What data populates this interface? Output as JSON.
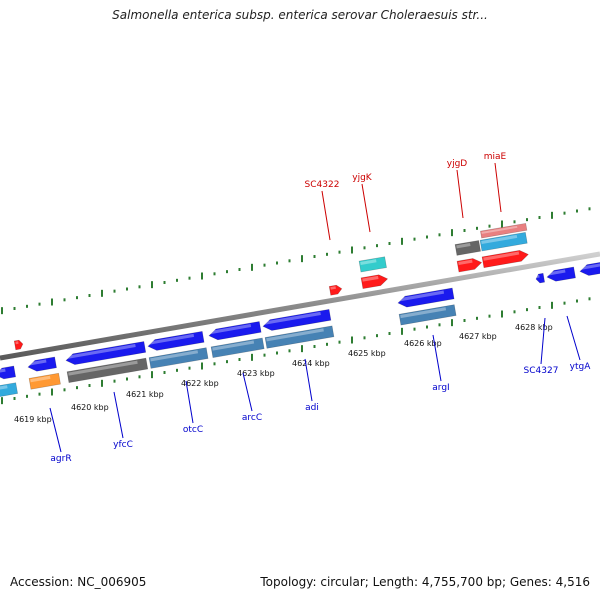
{
  "title": "Salmonella enterica subsp. enterica serovar Choleraesuis str...",
  "footer": {
    "accession": "Accession: NC_006905",
    "summary": "Topology: circular; Length: 4,755,700 bp; Genes: 4,516"
  },
  "colors": {
    "forward_label": "#cc0000",
    "reverse_label": "#0000cc",
    "tick_green": "#2e7d32",
    "backbone": "#8a8a8a"
  },
  "scale": {
    "labels": [
      "4619 kbp",
      "4620 kbp",
      "4621 kbp",
      "4622 kbp",
      "4623 kbp",
      "4624 kbp",
      "4625 kbp",
      "4626 kbp",
      "4627 kbp",
      "4628 kbp"
    ]
  },
  "genes": {
    "forward_labels": [
      "SC4322",
      "yjgK",
      "yjgD",
      "miaE"
    ],
    "reverse_labels": [
      "agrR",
      "yfcC",
      "otcC",
      "arcC",
      "adi",
      "argI",
      "SC4327",
      "ytgA"
    ]
  }
}
